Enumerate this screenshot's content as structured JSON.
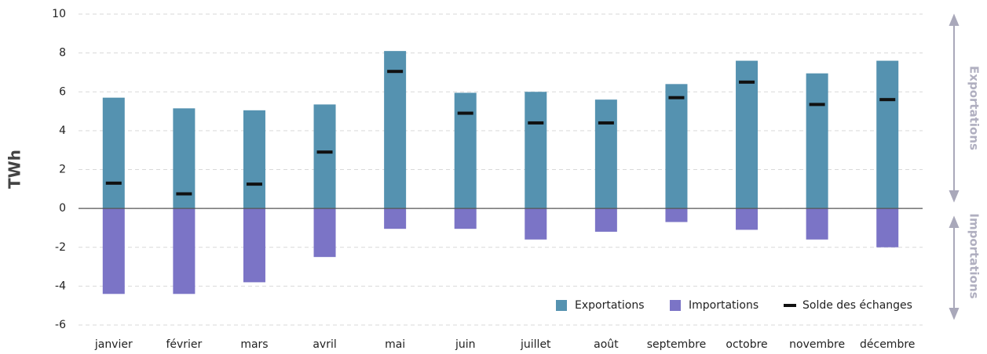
{
  "chart_data": {
    "type": "bar",
    "y_label": "TWh",
    "annotations": [
      "Exportations",
      "Importations"
    ],
    "categories": [
      "janvier",
      "février",
      "mars",
      "avril",
      "mai",
      "juin",
      "juillet",
      "août",
      "septembre",
      "octobre",
      "novembre",
      "décembre"
    ],
    "series": [
      {
        "name": "Exportations",
        "color": "#5592b0",
        "marker": "bar",
        "values": [
          5.7,
          5.15,
          5.05,
          5.35,
          8.1,
          5.95,
          6.0,
          5.6,
          6.4,
          7.6,
          6.95,
          7.6
        ]
      },
      {
        "name": "Importations",
        "color": "#7b74c6",
        "marker": "bar",
        "values": [
          -4.4,
          -4.4,
          -3.8,
          -2.5,
          -1.05,
          -1.05,
          -1.6,
          -1.2,
          -0.7,
          -1.1,
          -1.6,
          -2.0
        ]
      },
      {
        "name": "Solde des échanges",
        "color": "#111111",
        "marker": "dash",
        "values": [
          1.3,
          0.75,
          1.25,
          2.9,
          7.05,
          4.9,
          4.4,
          4.4,
          5.7,
          6.5,
          5.35,
          5.6
        ]
      }
    ],
    "ylim": [
      -6,
      10
    ],
    "yticks": [
      -6,
      -4,
      -2,
      0,
      2,
      4,
      6,
      8,
      10
    ],
    "grid": true,
    "legend": "lower right"
  }
}
